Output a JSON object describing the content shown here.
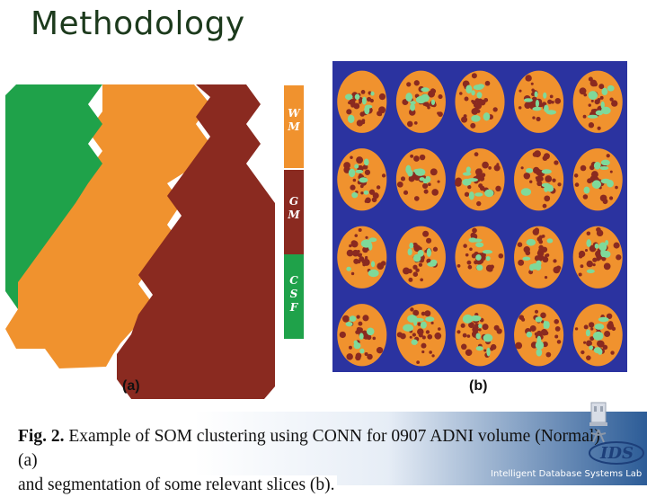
{
  "slide": {
    "title": "Methodology",
    "footer": "Intelligent Database Systems Lab"
  },
  "figure": {
    "panel_a_label": "(a)",
    "panel_b_label": "(b)",
    "legend": [
      {
        "lines": [
          "W",
          "M"
        ],
        "color": "#f0922e"
      },
      {
        "lines": [
          "G",
          "M"
        ],
        "color": "#8a2a20"
      },
      {
        "lines": [
          "C",
          "S",
          "F"
        ],
        "color": "#1fa24a"
      }
    ],
    "colors": {
      "csf_green": "#1fa24a",
      "wm_orange": "#f0922e",
      "gm_maroon": "#8a2a20",
      "background_blue": "#2b33a0",
      "highlight_green": "#7fd99a"
    },
    "slices_grid": {
      "rows": 4,
      "cols": 5
    }
  },
  "caption": {
    "lead": "Fig. 2.",
    "line1": "Example of SOM clustering using CONN for 0907 ADNI volume (Normal) (a)",
    "line2": "and segmentation of some relevant slices (b)."
  },
  "logo": {
    "text": "IDS"
  }
}
